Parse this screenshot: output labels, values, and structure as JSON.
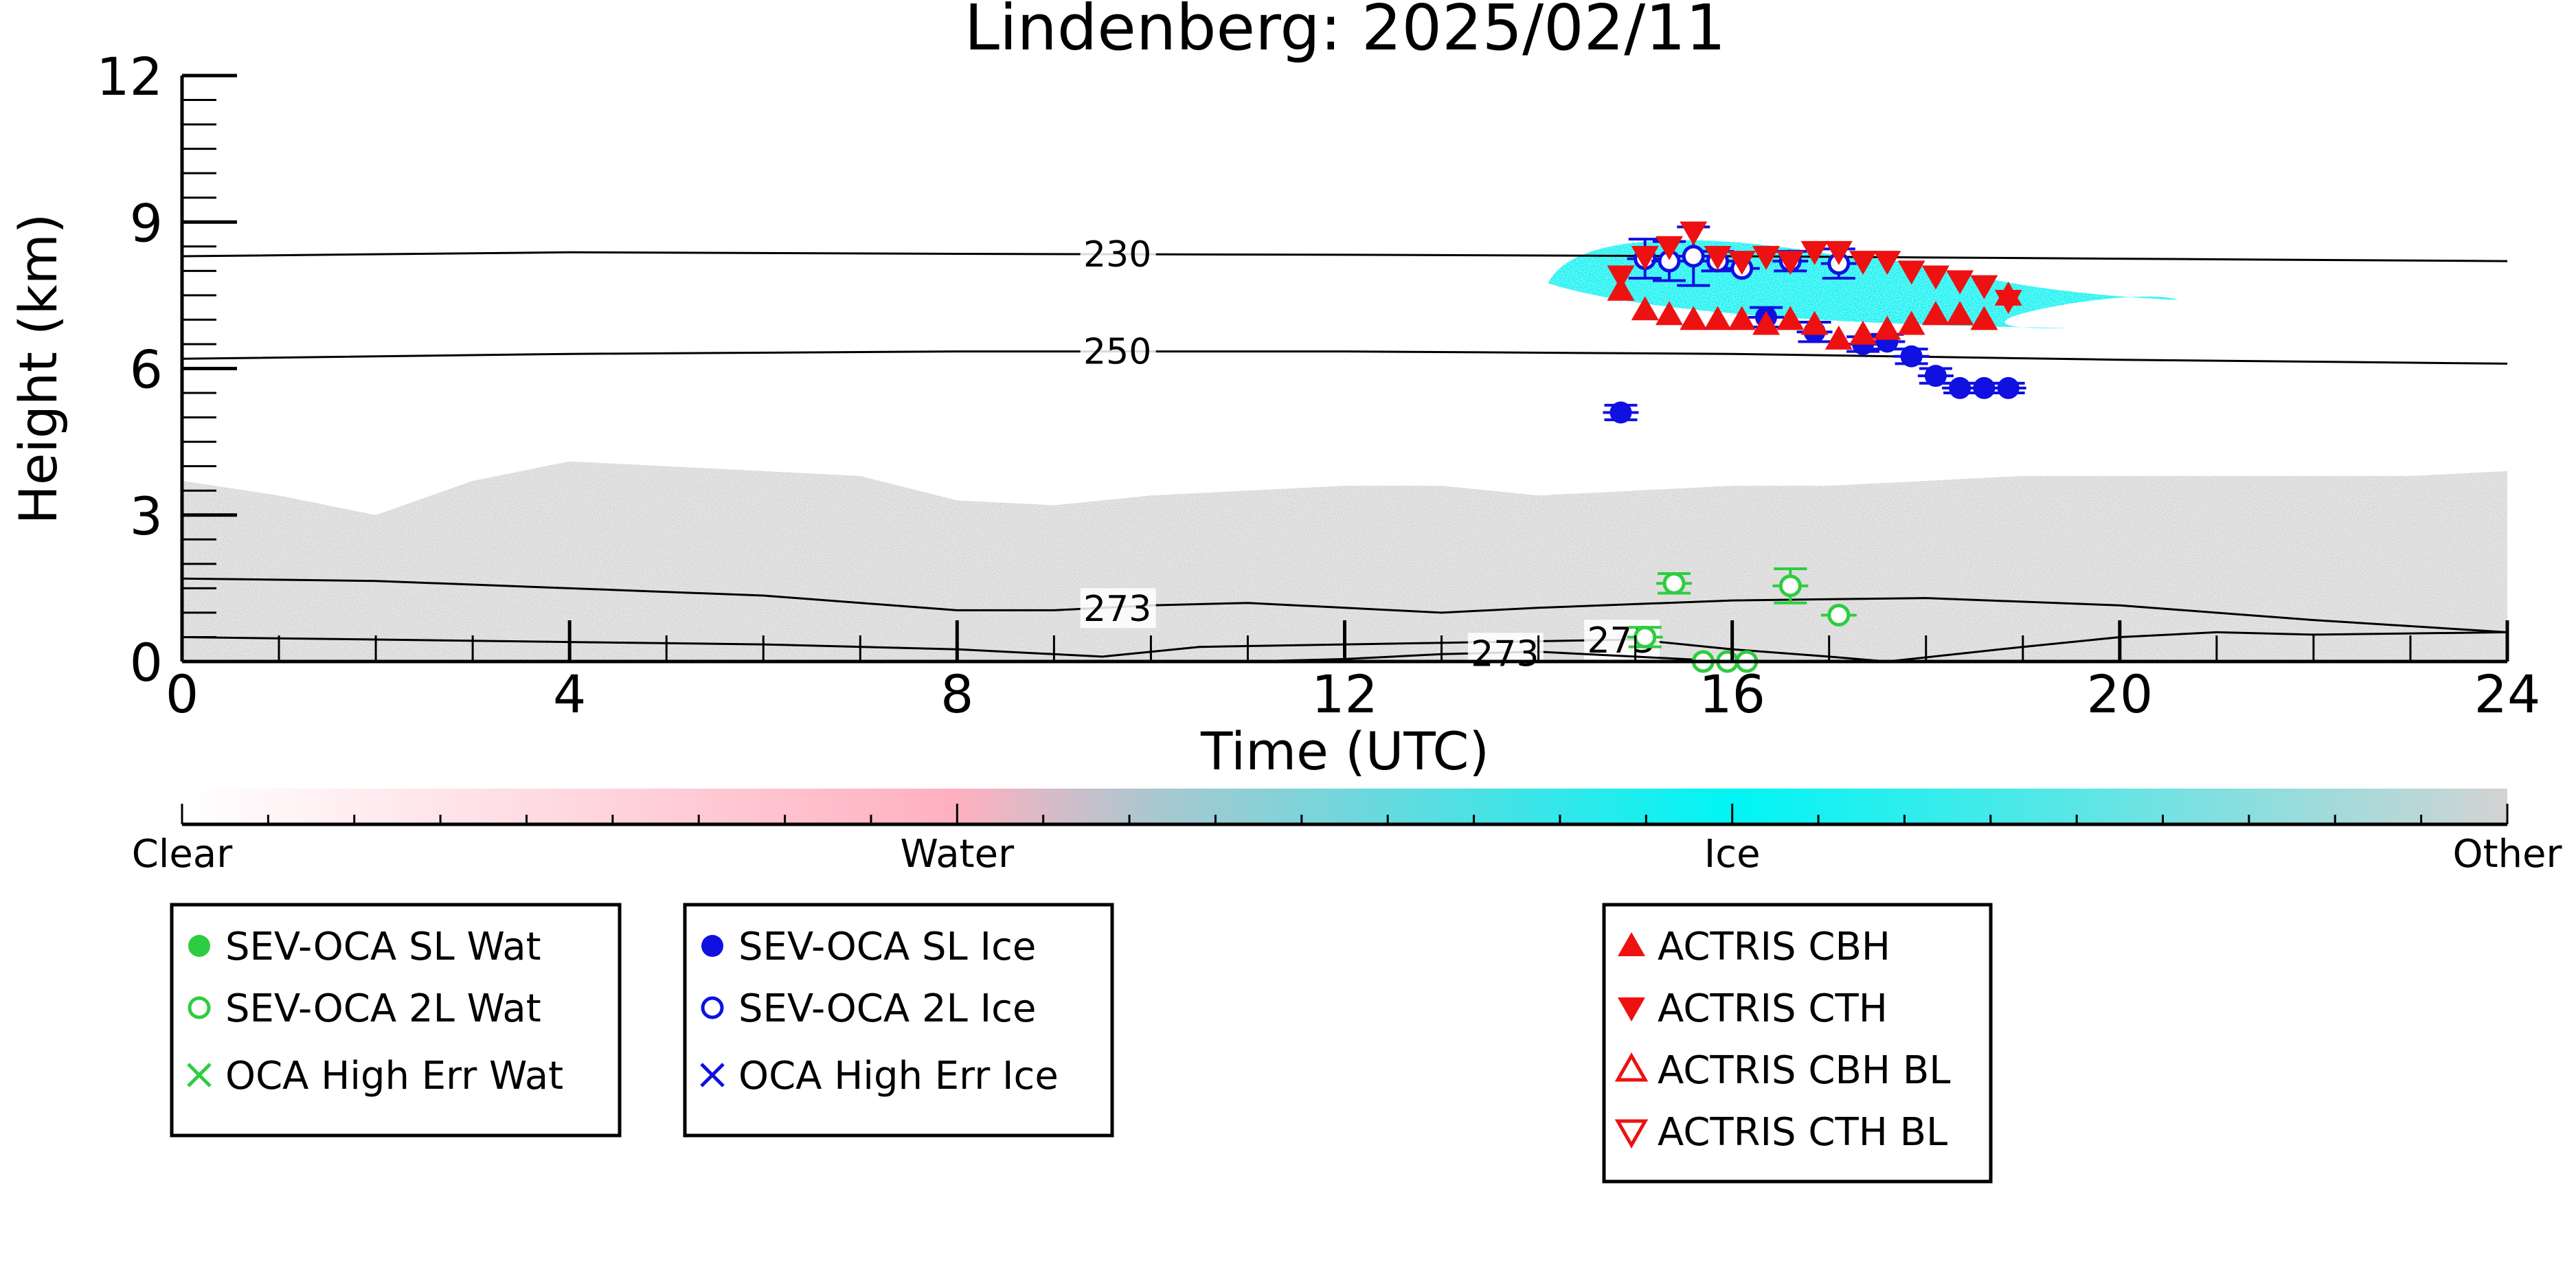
{
  "chart_data": {
    "type": "scatter",
    "title": "Lindenberg: 2025/02/11",
    "xlabel": "Time (UTC)",
    "ylabel": "Height (km)",
    "xlim": [
      0,
      24
    ],
    "ylim": [
      0,
      12
    ],
    "x_ticks": [
      "0",
      "4",
      "8",
      "12",
      "16",
      "20",
      "24"
    ],
    "y_ticks": [
      "0",
      "3",
      "6",
      "9",
      "12"
    ],
    "grid": false,
    "contours": [
      {
        "label": "230",
        "label_x": 9.3,
        "points": [
          [
            0,
            8.3
          ],
          [
            4,
            8.38
          ],
          [
            8,
            8.35
          ],
          [
            12,
            8.33
          ],
          [
            16,
            8.3
          ],
          [
            20,
            8.25
          ],
          [
            24,
            8.2
          ]
        ]
      },
      {
        "label": "250",
        "label_x": 9.3,
        "points": [
          [
            0,
            6.2
          ],
          [
            4,
            6.3
          ],
          [
            8,
            6.35
          ],
          [
            12,
            6.35
          ],
          [
            16,
            6.3
          ],
          [
            20,
            6.18
          ],
          [
            24,
            6.1
          ]
        ]
      },
      {
        "label": "273",
        "label_x": 9.3,
        "points": [
          [
            0,
            1.7
          ],
          [
            2,
            1.65
          ],
          [
            4,
            1.5
          ],
          [
            6,
            1.35
          ],
          [
            8,
            1.05
          ],
          [
            9,
            1.05
          ],
          [
            10,
            1.15
          ],
          [
            11,
            1.2
          ],
          [
            12,
            1.1
          ],
          [
            13,
            1.0
          ],
          [
            14,
            1.1
          ],
          [
            16,
            1.25
          ],
          [
            18,
            1.3
          ],
          [
            20,
            1.15
          ],
          [
            22,
            0.85
          ],
          [
            24,
            0.6
          ]
        ]
      },
      {
        "label": "273",
        "label_x": 14.5,
        "points": [
          [
            0,
            0.5
          ],
          [
            2,
            0.45
          ],
          [
            4,
            0.4
          ],
          [
            6,
            0.35
          ],
          [
            8,
            0.25
          ],
          [
            9.5,
            0.1
          ],
          [
            10.5,
            0.3
          ],
          [
            12,
            0.35
          ],
          [
            13.5,
            0.4
          ],
          [
            15,
            0.45
          ],
          [
            16,
            0.25
          ],
          [
            17,
            0.1
          ],
          [
            17.6,
            0
          ]
        ]
      },
      {
        "label": "273",
        "label_x": 13.3,
        "points": [
          [
            11,
            0
          ],
          [
            12,
            0.05
          ],
          [
            13,
            0.15
          ],
          [
            14,
            0.2
          ],
          [
            15,
            0.1
          ],
          [
            16,
            0
          ]
        ]
      },
      {
        "label": "",
        "label_x": 0,
        "points": [
          [
            17.6,
            0
          ],
          [
            19,
            0.3
          ],
          [
            20,
            0.5
          ],
          [
            21,
            0.6
          ],
          [
            22,
            0.55
          ],
          [
            24,
            0.6
          ]
        ]
      }
    ],
    "series": [
      {
        "name": "SEV-OCA SL Wat",
        "marker": "filled-circle",
        "color": "#2ecc40",
        "points": []
      },
      {
        "name": "SEV-OCA 2L Wat",
        "marker": "open-circle",
        "color": "#2ecc40",
        "points": [
          [
            15.1,
            0.5,
            0.2
          ],
          [
            15.4,
            1.6,
            0.2
          ],
          [
            15.7,
            0.0,
            0
          ],
          [
            15.95,
            0.0,
            0
          ],
          [
            16.15,
            0.0,
            0
          ],
          [
            16.6,
            1.55,
            0.35
          ],
          [
            17.1,
            0.95,
            0
          ]
        ]
      },
      {
        "name": "OCA High Err Wat",
        "marker": "x",
        "color": "#2ecc40",
        "points": []
      },
      {
        "name": "SEV-OCA SL Ice",
        "marker": "filled-circle",
        "color": "#1010e0",
        "points": [
          [
            14.85,
            5.1,
            0.15
          ],
          [
            16.35,
            7.05,
            0.2
          ],
          [
            16.85,
            6.75,
            0.2
          ],
          [
            17.35,
            6.5,
            0.15
          ],
          [
            17.6,
            6.55,
            0.15
          ],
          [
            17.85,
            6.25,
            0.15
          ],
          [
            18.1,
            5.85,
            0.15
          ],
          [
            18.35,
            5.6,
            0.1
          ],
          [
            18.6,
            5.6,
            0.1
          ],
          [
            18.85,
            5.6,
            0.1
          ]
        ]
      },
      {
        "name": "SEV-OCA 2L Ice",
        "marker": "open-circle",
        "color": "#1010e0",
        "points": [
          [
            15.1,
            8.25,
            0.4
          ],
          [
            15.35,
            8.2,
            0.4
          ],
          [
            15.6,
            8.3,
            0.6
          ],
          [
            15.85,
            8.2,
            0.2
          ],
          [
            16.1,
            8.05,
            0
          ],
          [
            16.6,
            8.2,
            0.2
          ],
          [
            17.1,
            8.15,
            0.3
          ]
        ]
      },
      {
        "name": "OCA High Err Ice",
        "marker": "x",
        "color": "#1010e0",
        "points": []
      },
      {
        "name": "ACTRIS CBH",
        "marker": "triangle-up",
        "color": "#ee1111",
        "points": [
          [
            14.85,
            7.6
          ],
          [
            15.1,
            7.2
          ],
          [
            15.35,
            7.1
          ],
          [
            15.6,
            7.0
          ],
          [
            15.85,
            7.0
          ],
          [
            16.1,
            7.0
          ],
          [
            16.35,
            6.9
          ],
          [
            16.6,
            7.0
          ],
          [
            16.85,
            6.9
          ],
          [
            17.1,
            6.6
          ],
          [
            17.35,
            6.7
          ],
          [
            17.6,
            6.8
          ],
          [
            17.85,
            6.9
          ],
          [
            18.1,
            7.1
          ],
          [
            18.35,
            7.1
          ],
          [
            18.6,
            7.0
          ],
          [
            18.85,
            7.5
          ]
        ]
      },
      {
        "name": "ACTRIS CTH",
        "marker": "triangle-down",
        "color": "#ee1111",
        "points": [
          [
            14.85,
            7.9
          ],
          [
            15.1,
            8.3
          ],
          [
            15.35,
            8.5
          ],
          [
            15.6,
            8.8
          ],
          [
            15.85,
            8.3
          ],
          [
            16.1,
            8.2
          ],
          [
            16.35,
            8.3
          ],
          [
            16.6,
            8.2
          ],
          [
            16.85,
            8.4
          ],
          [
            17.1,
            8.4
          ],
          [
            17.35,
            8.2
          ],
          [
            17.6,
            8.2
          ],
          [
            17.85,
            8.0
          ],
          [
            18.1,
            7.9
          ],
          [
            18.35,
            7.8
          ],
          [
            18.6,
            7.7
          ],
          [
            18.85,
            7.4
          ]
        ]
      },
      {
        "name": "ACTRIS CBH BL",
        "marker": "open-triangle-up",
        "color": "#ee1111",
        "points": []
      },
      {
        "name": "ACTRIS CTH BL",
        "marker": "open-triangle-down",
        "color": "#ee1111",
        "points": []
      }
    ],
    "background": [
      {
        "class": "Other",
        "color": "#d3d3d3",
        "description": "low-level aerosol/other layer",
        "x_range": [
          0,
          24
        ],
        "top_km": [
          3.7,
          3.4,
          3.0,
          3.7,
          4.1,
          4.0,
          3.9,
          3.8,
          3.3,
          3.2,
          3.4,
          3.5,
          3.6,
          3.6,
          3.4,
          3.5,
          3.6,
          3.6,
          3.7,
          3.8,
          3.8,
          3.8,
          3.8,
          3.8,
          3.9
        ]
      },
      {
        "class": "Ice",
        "color": "#00f0f0",
        "x_range": [
          14.1,
          20.6
        ],
        "y_range": [
          6.9,
          8.6
        ]
      }
    ],
    "colorbar": {
      "labels": [
        "Clear",
        "Water",
        "Ice",
        "Other"
      ],
      "colors": [
        "#ffffff",
        "#ffb0c0",
        "#00f5f5",
        "#d3d3d3"
      ]
    },
    "legend_boxes": [
      [
        "SEV-OCA SL Wat",
        "SEV-OCA 2L Wat",
        "OCA High Err Wat"
      ],
      [
        "SEV-OCA SL Ice",
        "SEV-OCA 2L Ice",
        "OCA High Err Ice"
      ],
      [
        "ACTRIS CBH",
        "ACTRIS CTH",
        "ACTRIS CBH BL",
        "ACTRIS CTH BL"
      ]
    ],
    "legend_placement": "bottom"
  }
}
